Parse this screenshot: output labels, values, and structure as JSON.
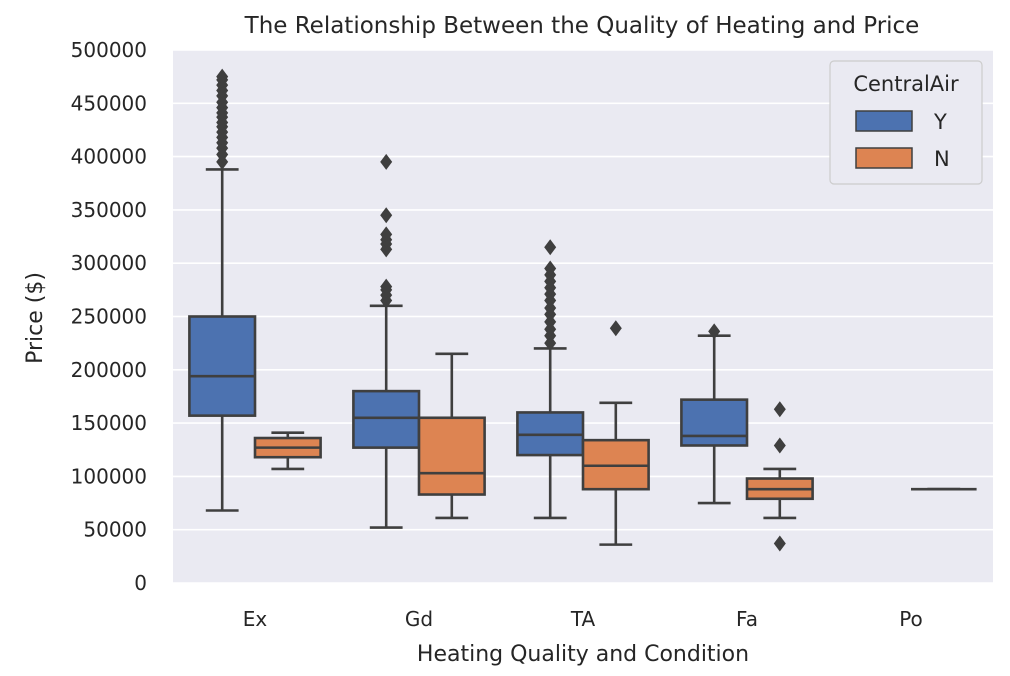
{
  "chart_data": {
    "type": "box",
    "title": "The Relationship Between the Quality of Heating and Price",
    "xlabel": "Heating Quality and Condition",
    "ylabel": "Price ($)",
    "ylim": [
      0,
      500000
    ],
    "yticks": [
      0,
      50000,
      100000,
      150000,
      200000,
      250000,
      300000,
      350000,
      400000,
      450000,
      500000
    ],
    "categories": [
      "Ex",
      "Gd",
      "TA",
      "Fa",
      "Po"
    ],
    "grid": true,
    "legend": {
      "title": "CentralAir",
      "position": "top-right",
      "entries": [
        {
          "name": "Y",
          "color": "#4c72b0"
        },
        {
          "name": "N",
          "color": "#dd8452"
        }
      ]
    },
    "series": [
      {
        "name": "Y",
        "color": "#4c72b0",
        "boxes": [
          {
            "category": "Ex",
            "whisker_low": 68000,
            "q1": 157000,
            "median": 194000,
            "q3": 250000,
            "whisker_high": 388000,
            "outliers": [
              395000,
              402000,
              408000,
              413000,
              418000,
              423000,
              428000,
              432000,
              437000,
              441000,
              446000,
              451000,
              457000,
              462000,
              467000,
              472000,
              475000
            ]
          },
          {
            "category": "Gd",
            "whisker_low": 52000,
            "q1": 127000,
            "median": 155000,
            "q3": 180000,
            "whisker_high": 260000,
            "outliers": [
              265000,
              270000,
              275000,
              278000,
              313000,
              318000,
              322000,
              327000,
              345000,
              395000
            ]
          },
          {
            "category": "TA",
            "whisker_low": 61000,
            "q1": 120000,
            "median": 139000,
            "q3": 160000,
            "whisker_high": 220000,
            "outliers": [
              225000,
              232000,
              238000,
              245000,
              252000,
              258000,
              265000,
              271000,
              277000,
              283000,
              289000,
              295000,
              315000
            ]
          },
          {
            "category": "Fa",
            "whisker_low": 75000,
            "q1": 129000,
            "median": 138000,
            "q3": 172000,
            "whisker_high": 232000,
            "outliers": [
              236000
            ]
          },
          {
            "category": "Po",
            "whisker_low": null,
            "q1": null,
            "median": null,
            "q3": null,
            "whisker_high": null,
            "outliers": []
          }
        ]
      },
      {
        "name": "N",
        "color": "#dd8452",
        "boxes": [
          {
            "category": "Ex",
            "whisker_low": 107000,
            "q1": 118000,
            "median": 127000,
            "q3": 136000,
            "whisker_high": 141000,
            "outliers": []
          },
          {
            "category": "Gd",
            "whisker_low": 61000,
            "q1": 83000,
            "median": 103000,
            "q3": 155000,
            "whisker_high": 215000,
            "outliers": []
          },
          {
            "category": "TA",
            "whisker_low": 36000,
            "q1": 88000,
            "median": 110000,
            "q3": 134000,
            "whisker_high": 169000,
            "outliers": [
              239000
            ]
          },
          {
            "category": "Fa",
            "whisker_low": 61000,
            "q1": 79000,
            "median": 88000,
            "q3": 98000,
            "whisker_high": 107000,
            "outliers": [
              37000,
              129000,
              163000
            ]
          },
          {
            "category": "Po",
            "whisker_low": 88000,
            "q1": 88000,
            "median": 88000,
            "q3": 88000,
            "whisker_high": 88000,
            "outliers": []
          }
        ]
      }
    ]
  }
}
